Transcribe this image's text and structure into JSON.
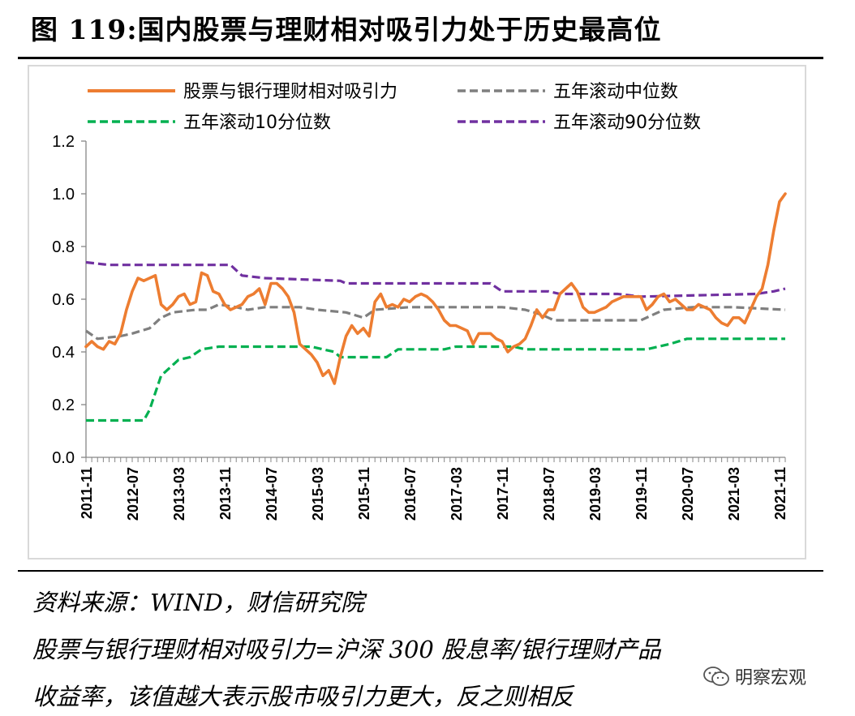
{
  "figure": {
    "title": "图 119:国内股票与理财相对吸引力处于历史最高位"
  },
  "notes": {
    "source": "资料来源：WIND，财信研究院",
    "definition_line1": "股票与银行理财相对吸引力=沪深 300 股息率/银行理财产品",
    "definition_line2": "收益率，该值越大表示股市吸引力更大，反之则相反"
  },
  "watermark": {
    "text": "明察宏观",
    "icon": "wechat-icon"
  },
  "chart_data": {
    "type": "line",
    "title": "",
    "xlabel": "",
    "ylabel": "",
    "ylim": [
      0.0,
      1.2
    ],
    "y_ticks": [
      "0.0",
      "0.2",
      "0.4",
      "0.6",
      "0.8",
      "1.0",
      "1.2"
    ],
    "x_tick_labels": [
      "2011-11",
      "2012-07",
      "2013-03",
      "2013-11",
      "2014-07",
      "2015-03",
      "2015-11",
      "2016-07",
      "2017-03",
      "2017-11",
      "2018-07",
      "2019-03",
      "2019-11",
      "2020-07",
      "2021-03",
      "2021-11"
    ],
    "x_start": "2011-11",
    "x_end": "2021-12",
    "grid": false,
    "legend_position": "top",
    "series": [
      {
        "name": "股票与银行理财相对吸引力",
        "color": "#ED7D31",
        "dash": "solid",
        "points": [
          [
            "2011-11",
            0.42
          ],
          [
            "2011-12",
            0.44
          ],
          [
            "2012-01",
            0.42
          ],
          [
            "2012-02",
            0.41
          ],
          [
            "2012-03",
            0.44
          ],
          [
            "2012-04",
            0.43
          ],
          [
            "2012-05",
            0.47
          ],
          [
            "2012-06",
            0.56
          ],
          [
            "2012-07",
            0.63
          ],
          [
            "2012-08",
            0.68
          ],
          [
            "2012-09",
            0.67
          ],
          [
            "2012-10",
            0.68
          ],
          [
            "2012-11",
            0.69
          ],
          [
            "2012-12",
            0.58
          ],
          [
            "2013-01",
            0.56
          ],
          [
            "2013-02",
            0.58
          ],
          [
            "2013-03",
            0.61
          ],
          [
            "2013-04",
            0.62
          ],
          [
            "2013-05",
            0.58
          ],
          [
            "2013-06",
            0.59
          ],
          [
            "2013-07",
            0.7
          ],
          [
            "2013-08",
            0.69
          ],
          [
            "2013-09",
            0.63
          ],
          [
            "2013-10",
            0.62
          ],
          [
            "2013-11",
            0.58
          ],
          [
            "2013-12",
            0.56
          ],
          [
            "2014-01",
            0.57
          ],
          [
            "2014-02",
            0.58
          ],
          [
            "2014-03",
            0.61
          ],
          [
            "2014-04",
            0.62
          ],
          [
            "2014-05",
            0.64
          ],
          [
            "2014-06",
            0.58
          ],
          [
            "2014-07",
            0.66
          ],
          [
            "2014-08",
            0.66
          ],
          [
            "2014-09",
            0.64
          ],
          [
            "2014-10",
            0.61
          ],
          [
            "2014-11",
            0.55
          ],
          [
            "2014-12",
            0.43
          ],
          [
            "2015-01",
            0.41
          ],
          [
            "2015-02",
            0.39
          ],
          [
            "2015-03",
            0.36
          ],
          [
            "2015-04",
            0.31
          ],
          [
            "2015-05",
            0.33
          ],
          [
            "2015-06",
            0.28
          ],
          [
            "2015-07",
            0.38
          ],
          [
            "2015-08",
            0.46
          ],
          [
            "2015-09",
            0.5
          ],
          [
            "2015-10",
            0.47
          ],
          [
            "2015-11",
            0.49
          ],
          [
            "2015-12",
            0.46
          ],
          [
            "2016-01",
            0.59
          ],
          [
            "2016-02",
            0.62
          ],
          [
            "2016-03",
            0.57
          ],
          [
            "2016-04",
            0.58
          ],
          [
            "2016-05",
            0.57
          ],
          [
            "2016-06",
            0.6
          ],
          [
            "2016-07",
            0.59
          ],
          [
            "2016-08",
            0.61
          ],
          [
            "2016-09",
            0.62
          ],
          [
            "2016-10",
            0.61
          ],
          [
            "2016-11",
            0.59
          ],
          [
            "2016-12",
            0.56
          ],
          [
            "2017-01",
            0.52
          ],
          [
            "2017-02",
            0.5
          ],
          [
            "2017-03",
            0.5
          ],
          [
            "2017-04",
            0.49
          ],
          [
            "2017-05",
            0.48
          ],
          [
            "2017-06",
            0.43
          ],
          [
            "2017-07",
            0.47
          ],
          [
            "2017-08",
            0.47
          ],
          [
            "2017-09",
            0.47
          ],
          [
            "2017-10",
            0.45
          ],
          [
            "2017-11",
            0.44
          ],
          [
            "2017-12",
            0.4
          ],
          [
            "2018-01",
            0.42
          ],
          [
            "2018-02",
            0.43
          ],
          [
            "2018-03",
            0.45
          ],
          [
            "2018-04",
            0.5
          ],
          [
            "2018-05",
            0.56
          ],
          [
            "2018-06",
            0.53
          ],
          [
            "2018-07",
            0.56
          ],
          [
            "2018-08",
            0.56
          ],
          [
            "2018-09",
            0.62
          ],
          [
            "2018-10",
            0.64
          ],
          [
            "2018-11",
            0.66
          ],
          [
            "2018-12",
            0.63
          ],
          [
            "2019-01",
            0.57
          ],
          [
            "2019-02",
            0.55
          ],
          [
            "2019-03",
            0.55
          ],
          [
            "2019-04",
            0.56
          ],
          [
            "2019-05",
            0.57
          ],
          [
            "2019-06",
            0.59
          ],
          [
            "2019-07",
            0.6
          ],
          [
            "2019-08",
            0.61
          ],
          [
            "2019-09",
            0.61
          ],
          [
            "2019-10",
            0.61
          ],
          [
            "2019-11",
            0.61
          ],
          [
            "2019-12",
            0.56
          ],
          [
            "2020-01",
            0.58
          ],
          [
            "2020-02",
            0.61
          ],
          [
            "2020-03",
            0.62
          ],
          [
            "2020-04",
            0.59
          ],
          [
            "2020-05",
            0.6
          ],
          [
            "2020-06",
            0.58
          ],
          [
            "2020-07",
            0.56
          ],
          [
            "2020-08",
            0.56
          ],
          [
            "2020-09",
            0.58
          ],
          [
            "2020-10",
            0.57
          ],
          [
            "2020-11",
            0.56
          ],
          [
            "2020-12",
            0.53
          ],
          [
            "2021-01",
            0.51
          ],
          [
            "2021-02",
            0.5
          ],
          [
            "2021-03",
            0.53
          ],
          [
            "2021-04",
            0.53
          ],
          [
            "2021-05",
            0.51
          ],
          [
            "2021-06",
            0.56
          ],
          [
            "2021-07",
            0.61
          ],
          [
            "2021-08",
            0.64
          ],
          [
            "2021-09",
            0.73
          ],
          [
            "2021-10",
            0.86
          ],
          [
            "2021-11",
            0.97
          ],
          [
            "2021-12",
            1.0
          ]
        ]
      },
      {
        "name": "五年滚动中位数",
        "color": "#7F7F7F",
        "dash": "dashed",
        "points": [
          [
            "2011-11",
            0.48
          ],
          [
            "2012-01",
            0.45
          ],
          [
            "2012-05",
            0.46
          ],
          [
            "2012-07",
            0.47
          ],
          [
            "2012-10",
            0.49
          ],
          [
            "2012-12",
            0.53
          ],
          [
            "2013-02",
            0.55
          ],
          [
            "2013-06",
            0.56
          ],
          [
            "2013-08",
            0.56
          ],
          [
            "2013-10",
            0.58
          ],
          [
            "2014-01",
            0.57
          ],
          [
            "2014-03",
            0.56
          ],
          [
            "2014-06",
            0.57
          ],
          [
            "2014-12",
            0.57
          ],
          [
            "2015-03",
            0.56
          ],
          [
            "2015-08",
            0.55
          ],
          [
            "2015-11",
            0.53
          ],
          [
            "2016-01",
            0.56
          ],
          [
            "2016-07",
            0.57
          ],
          [
            "2016-12",
            0.57
          ],
          [
            "2017-11",
            0.57
          ],
          [
            "2018-03",
            0.56
          ],
          [
            "2018-06",
            0.54
          ],
          [
            "2018-08",
            0.52
          ],
          [
            "2019-11",
            0.52
          ],
          [
            "2020-03",
            0.56
          ],
          [
            "2020-08",
            0.57
          ],
          [
            "2021-03",
            0.57
          ],
          [
            "2021-12",
            0.56
          ]
        ]
      },
      {
        "name": "五年滚动10分位数",
        "color": "#00B050",
        "dash": "dashed",
        "points": [
          [
            "2011-11",
            0.14
          ],
          [
            "2012-09",
            0.14
          ],
          [
            "2012-10",
            0.18
          ],
          [
            "2012-12",
            0.31
          ],
          [
            "2013-02",
            0.35
          ],
          [
            "2013-03",
            0.37
          ],
          [
            "2013-05",
            0.38
          ],
          [
            "2013-07",
            0.41
          ],
          [
            "2013-10",
            0.42
          ],
          [
            "2015-02",
            0.42
          ],
          [
            "2015-06",
            0.4
          ],
          [
            "2015-07",
            0.38
          ],
          [
            "2016-03",
            0.38
          ],
          [
            "2016-05",
            0.41
          ],
          [
            "2017-01",
            0.41
          ],
          [
            "2017-03",
            0.42
          ],
          [
            "2018-01",
            0.42
          ],
          [
            "2018-03",
            0.41
          ],
          [
            "2019-12",
            0.41
          ],
          [
            "2020-02",
            0.42
          ],
          [
            "2020-04",
            0.43
          ],
          [
            "2020-07",
            0.45
          ],
          [
            "2021-12",
            0.45
          ]
        ]
      },
      {
        "name": "五年滚动90分位数",
        "color": "#7030A0",
        "dash": "dashed",
        "points": [
          [
            "2011-11",
            0.74
          ],
          [
            "2012-03",
            0.73
          ],
          [
            "2013-12",
            0.73
          ],
          [
            "2014-02",
            0.69
          ],
          [
            "2014-06",
            0.68
          ],
          [
            "2015-07",
            0.67
          ],
          [
            "2015-08",
            0.66
          ],
          [
            "2017-09",
            0.66
          ],
          [
            "2017-11",
            0.63
          ],
          [
            "2018-07",
            0.63
          ],
          [
            "2018-09",
            0.62
          ],
          [
            "2019-07",
            0.62
          ],
          [
            "2019-11",
            0.61
          ],
          [
            "2021-07",
            0.62
          ],
          [
            "2021-10",
            0.63
          ],
          [
            "2021-12",
            0.64
          ]
        ]
      }
    ]
  }
}
